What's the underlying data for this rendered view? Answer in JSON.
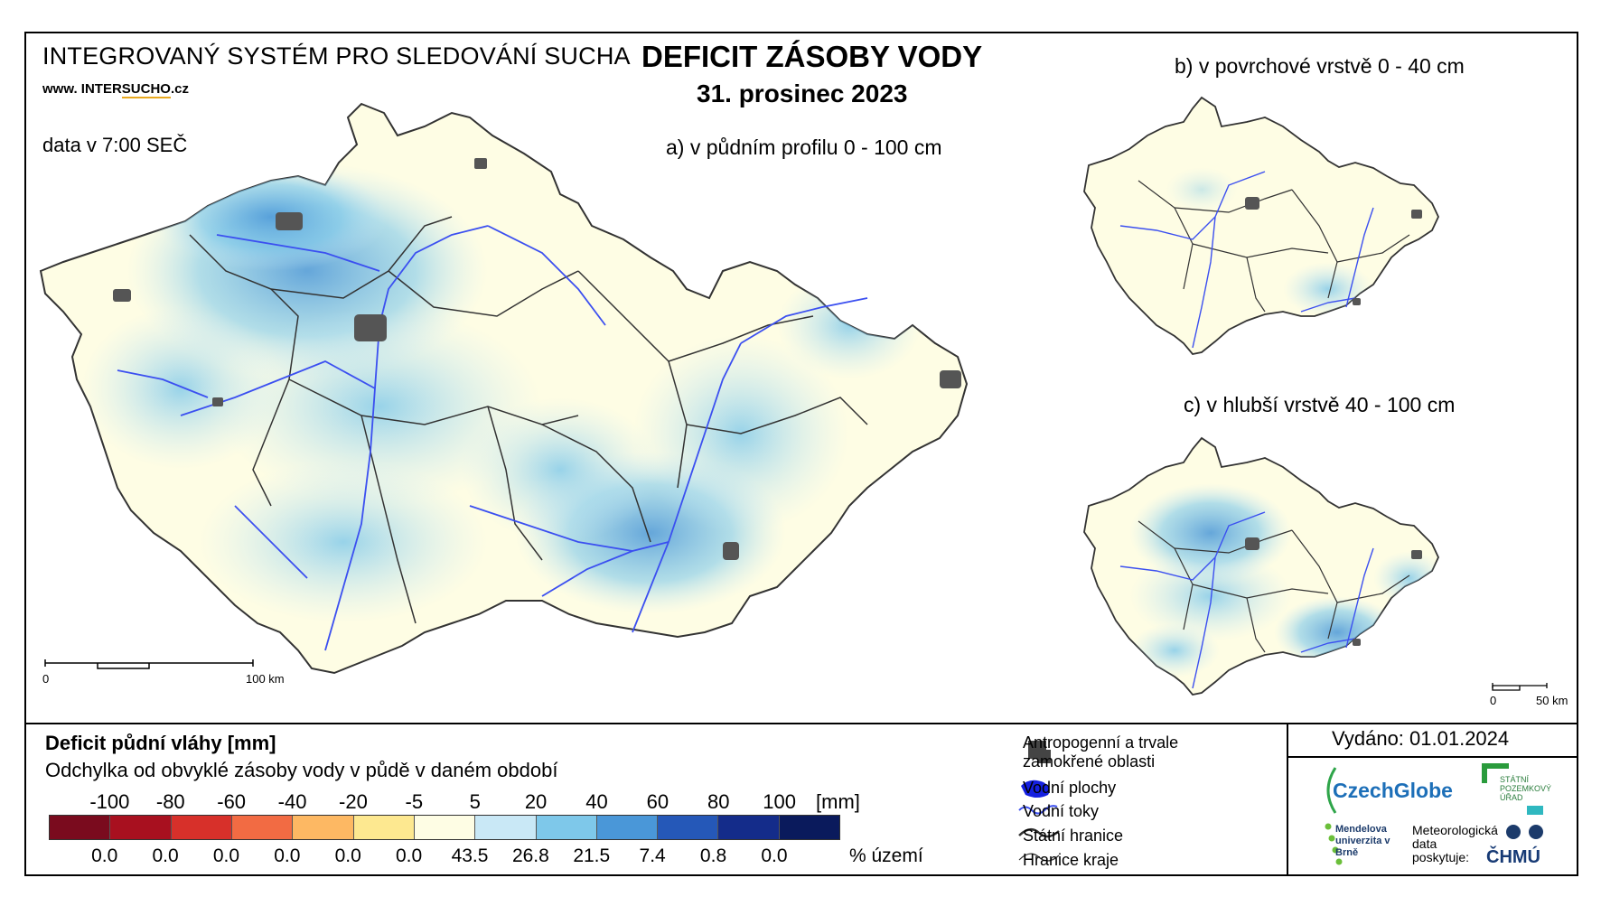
{
  "header": {
    "system_title": "INTEGROVANÝ SYSTÉM PRO SLEDOVÁNÍ SUCHA",
    "website_prefix": "www. INTER",
    "website_main": "SUCHO",
    "website_suffix": ".cz",
    "data_time": "data v 7:00 SEČ",
    "title": "DEFICIT ZÁSOBY VODY",
    "date": "31. prosinec 2023"
  },
  "maps": {
    "a_label": "a) v půdním profilu 0 - 100 cm",
    "b_label": "b) v povrchové vrstvě 0 - 40 cm",
    "c_label": "c) v hlubší vrstvě 40 - 100 cm",
    "scale_main_zero": "0",
    "scale_main_end": "100 km",
    "scale_small_zero": "0",
    "scale_small_end": "50 km"
  },
  "legend": {
    "title": "Deficit půdní vláhy  [mm]",
    "subtitle": "Odchylka od obvyklé zásoby vody v půdě v daném období",
    "ticks": [
      "-100",
      "-80",
      "-60",
      "-40",
      "-20",
      "-5",
      "5",
      "20",
      "40",
      "60",
      "80",
      "100"
    ],
    "unit": "[mm]",
    "colors": [
      "#7a0b1e",
      "#a8101f",
      "#d7302a",
      "#f26b43",
      "#fdb863",
      "#fde890",
      "#fefde4",
      "#c9e8f6",
      "#7ec8ea",
      "#4a97d8",
      "#2558b8",
      "#142c8a",
      "#0a1a5c"
    ],
    "percent": [
      "0.0",
      "0.0",
      "0.0",
      "0.0",
      "0.0",
      "0.0",
      "43.5",
      "26.8",
      "21.5",
      "7.4",
      "0.8",
      "0.0"
    ],
    "percent_unit": "% území"
  },
  "key": {
    "anthropogenic": "Antropogenní a trvale zamokřené oblasti",
    "water_bodies": "Vodní plochy",
    "rivers": "Vodní toky",
    "state_border": "Státní hranice",
    "region_border": "Hranice kraje"
  },
  "footer": {
    "issued": "Vydáno: 01.01.2024",
    "czechglobe": "CzechGlobe",
    "spu": "STÁTNÍ POZEMKOVÝ ÚŘAD",
    "mendel": "Mendelova univerzita v Brně",
    "meteo": "Meteorologická data poskytuje:",
    "chmu": "ČHMÚ"
  }
}
